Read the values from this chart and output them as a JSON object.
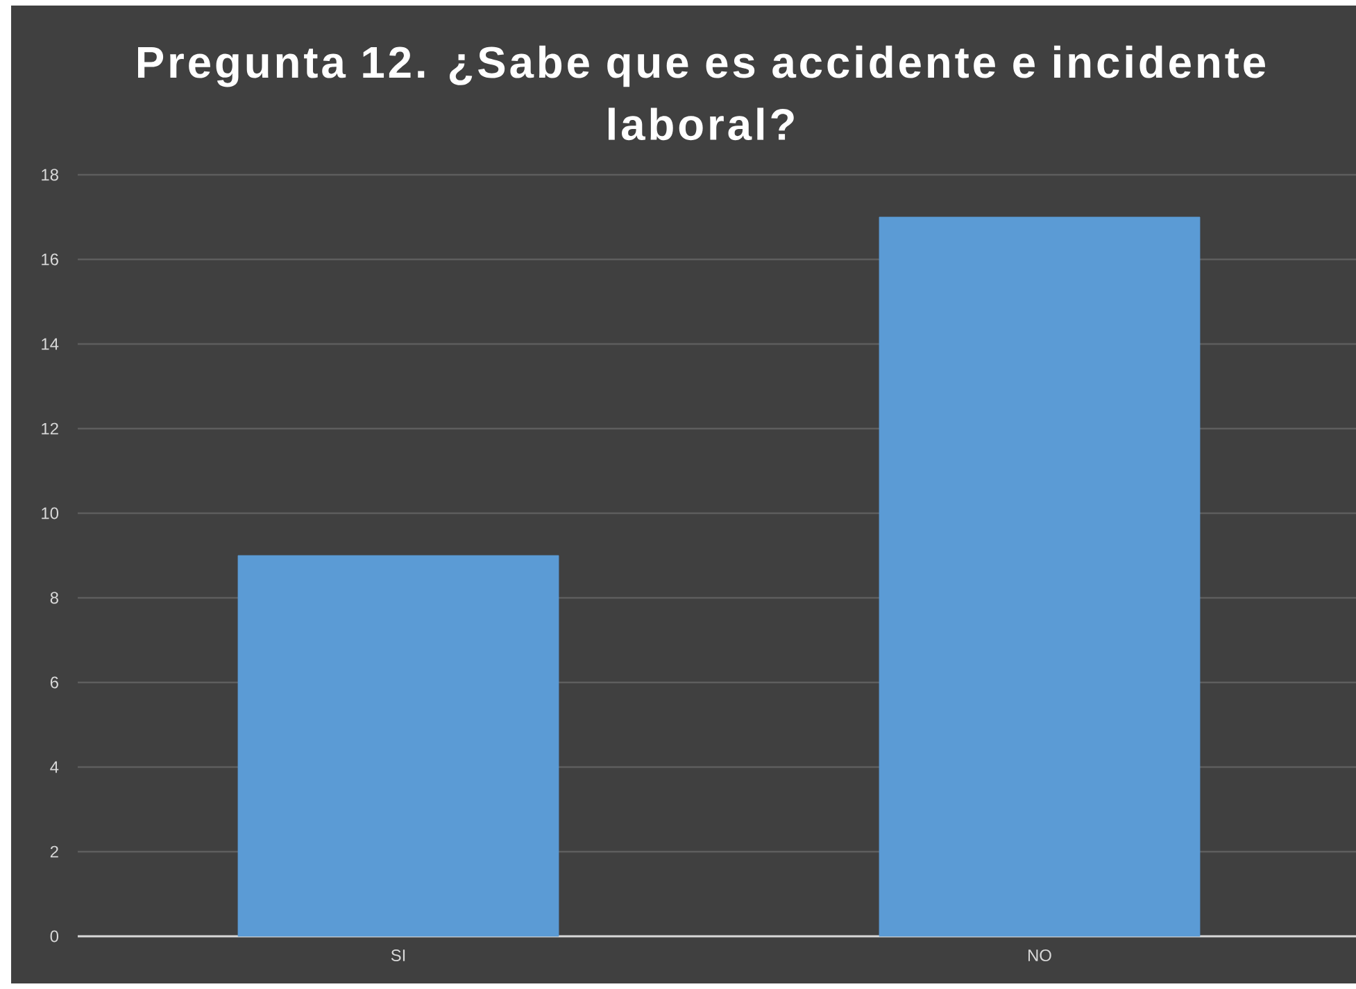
{
  "chart_data": {
    "type": "bar",
    "title": "Pregunta 12. ¿Sabe que es accidente e incidente laboral?",
    "categories": [
      "SI",
      "NO"
    ],
    "values": [
      9,
      17
    ],
    "color": "#5b9bd5",
    "ylim": [
      0,
      18
    ],
    "yticks": [
      0,
      2,
      4,
      6,
      8,
      10,
      12,
      14,
      16,
      18
    ],
    "grid": "y"
  }
}
